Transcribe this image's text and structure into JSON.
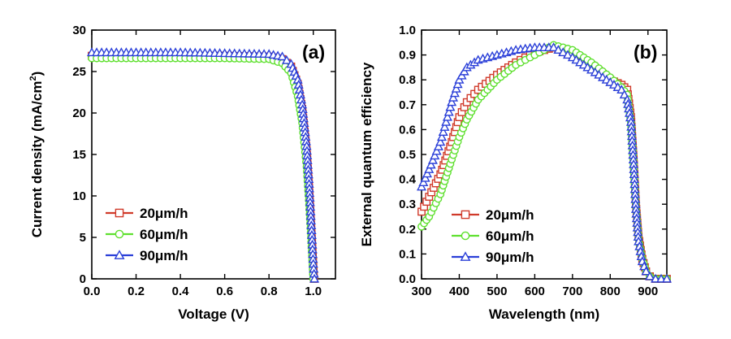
{
  "chart_data": [
    {
      "type": "line",
      "panel_label": "(a)",
      "xlabel": "Voltage (V)",
      "ylabel": "Current density (mA/cm2)",
      "ylabel_main": "Current density (mA/cm",
      "ylabel_sup": "2",
      "ylabel_end": ")",
      "xlim": [
        0.0,
        1.1
      ],
      "ylim": [
        0,
        30
      ],
      "xticks": [
        "0.0",
        "0.2",
        "0.4",
        "0.6",
        "0.8",
        "1.0"
      ],
      "yticks": [
        "0",
        "5",
        "10",
        "15",
        "20",
        "25",
        "30"
      ],
      "legend_position": "lower-left",
      "series": [
        {
          "name": "20μm/h",
          "marker": "square",
          "color": "#d03a2a",
          "x": [
            0.0,
            0.2,
            0.4,
            0.6,
            0.8,
            0.86,
            0.9,
            0.93,
            0.95,
            0.97,
            0.98,
            0.99,
            1.0,
            1.003
          ],
          "y": [
            26.9,
            26.9,
            26.9,
            26.9,
            26.8,
            26.5,
            25.6,
            23.5,
            20.5,
            15.5,
            11.5,
            6.5,
            1.5,
            0
          ]
        },
        {
          "name": "60μm/h",
          "marker": "circle",
          "color": "#5ee02e",
          "x": [
            0.0,
            0.2,
            0.4,
            0.6,
            0.8,
            0.86,
            0.9,
            0.93,
            0.95,
            0.97,
            0.98,
            0.99,
            1.0
          ],
          "y": [
            26.6,
            26.6,
            26.6,
            26.6,
            26.5,
            26.0,
            24.8,
            22.0,
            18.8,
            13.5,
            9.5,
            5.0,
            0
          ]
        },
        {
          "name": "90μm/h",
          "marker": "triangle",
          "color": "#2a3fd8",
          "x": [
            0.0,
            0.2,
            0.4,
            0.6,
            0.8,
            0.86,
            0.9,
            0.93,
            0.95,
            0.97,
            0.98,
            0.99,
            1.0,
            1.005
          ],
          "y": [
            27.3,
            27.3,
            27.3,
            27.2,
            27.1,
            26.8,
            25.9,
            24.0,
            21.0,
            16.0,
            12.0,
            7.0,
            1.8,
            0
          ]
        }
      ]
    },
    {
      "type": "line",
      "panel_label": "(b)",
      "xlabel": "Wavelength (nm)",
      "ylabel": "External quantum efficiency",
      "xlim": [
        300,
        950
      ],
      "ylim": [
        0.0,
        1.0
      ],
      "xticks": [
        "300",
        "400",
        "500",
        "600",
        "700",
        "800",
        "900"
      ],
      "yticks": [
        "0.0",
        "0.1",
        "0.2",
        "0.3",
        "0.4",
        "0.5",
        "0.6",
        "0.7",
        "0.8",
        "0.9",
        "1.0"
      ],
      "legend_position": "lower-left",
      "series": [
        {
          "name": "20μm/h",
          "marker": "square",
          "color": "#d03a2a",
          "x": [
            300,
            320,
            350,
            380,
            400,
            420,
            450,
            500,
            550,
            600,
            650,
            700,
            750,
            800,
            830,
            845,
            855,
            862,
            868,
            875,
            885,
            895,
            905,
            920,
            950
          ],
          "y": [
            0.27,
            0.33,
            0.42,
            0.55,
            0.65,
            0.71,
            0.76,
            0.82,
            0.87,
            0.91,
            0.93,
            0.9,
            0.86,
            0.8,
            0.78,
            0.76,
            0.65,
            0.48,
            0.3,
            0.17,
            0.08,
            0.03,
            0.01,
            0.0,
            0.0
          ]
        },
        {
          "name": "60μm/h",
          "marker": "circle",
          "color": "#5ee02e",
          "x": [
            300,
            320,
            350,
            380,
            400,
            420,
            450,
            500,
            550,
            600,
            650,
            700,
            750,
            800,
            830,
            845,
            855,
            862,
            868,
            875,
            885,
            895,
            905,
            920,
            950
          ],
          "y": [
            0.21,
            0.25,
            0.34,
            0.48,
            0.57,
            0.64,
            0.72,
            0.8,
            0.86,
            0.9,
            0.94,
            0.92,
            0.87,
            0.81,
            0.77,
            0.74,
            0.63,
            0.46,
            0.29,
            0.16,
            0.08,
            0.03,
            0.01,
            0.0,
            0.0
          ]
        },
        {
          "name": "90μm/h",
          "marker": "triangle",
          "color": "#2a3fd8",
          "x": [
            300,
            320,
            350,
            380,
            400,
            420,
            450,
            500,
            550,
            600,
            650,
            700,
            750,
            800,
            830,
            845,
            855,
            862,
            868,
            875,
            885,
            895,
            905,
            920,
            950
          ],
          "y": [
            0.37,
            0.44,
            0.55,
            0.71,
            0.8,
            0.85,
            0.88,
            0.9,
            0.92,
            0.93,
            0.93,
            0.89,
            0.84,
            0.79,
            0.76,
            0.72,
            0.63,
            0.46,
            0.28,
            0.15,
            0.07,
            0.03,
            0.01,
            0.0,
            0.0
          ]
        }
      ]
    }
  ]
}
